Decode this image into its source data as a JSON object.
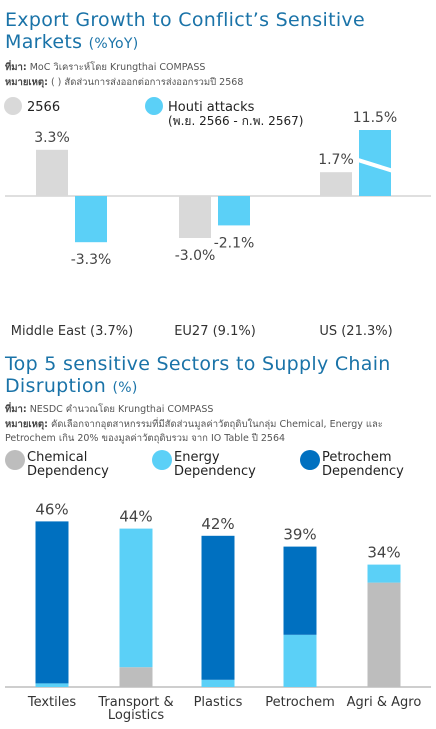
{
  "colors": {
    "title": "#1a73a8",
    "gray": "#d9d9d9",
    "gray_dark": "#bdbdbd",
    "cyan": "#5bd0f7",
    "blue": "#0070c0",
    "baseline": "#bfbfbf"
  },
  "section1": {
    "title": "Export Growth to Conflict’s Sensitive Markets",
    "title_unit": "(%YoY)",
    "source_label": "ที่มา:",
    "source_text": "MoC วิเคราะห์โดย Krungthai COMPASS",
    "note_label": "หมายเหตุ:",
    "note_text": "( ) สัดส่วนการส่งออกต่อการส่งออกรวมปี 2568"
  },
  "section2": {
    "title": "Top 5 sensitive Sectors to Supply Chain Disruption",
    "title_unit": "(%)",
    "source_label": "ที่มา:",
    "source_text": "NESDC คำนวณโดย Krungthai COMPASS",
    "note_label": "หมายเหตุ:",
    "note_line1": "คัดเลือกจากอุตสาหกรรมที่มีสัดส่วนมูลค่าวัตถุดิบในกลุ่ม Chemical, Energy และ",
    "note_line2": "Petrochem  เกิน 20% ของมูลค่าวัตถุดิบรวม จาก IO Table ปี 2564"
  },
  "chart_data": [
    {
      "type": "bar",
      "categories": [
        "Middle East (3.7%)",
        "EU27 (9.1%)",
        "US (21.3%)"
      ],
      "series": [
        {
          "name": "2566",
          "values": [
            3.3,
            -3.0,
            1.7
          ],
          "labels": [
            "3.3%",
            "-3.0%",
            "1.7%"
          ],
          "color": "#d9d9d9"
        },
        {
          "name": "Houti attacks (พ.ย. 2566 - ก.พ. 2567)",
          "values": [
            -3.3,
            -2.1,
            11.5
          ],
          "labels": [
            "-3.3%",
            "-2.1%",
            "11.5%"
          ],
          "color": "#5bd0f7"
        }
      ],
      "legend": [
        {
          "line1": "2566",
          "line2": ""
        },
        {
          "line1": "Houti attacks",
          "line2": "(พ.ย. 2566 - ก.พ. 2567)"
        }
      ],
      "axis_break": "US bar of Houti attacks series",
      "legend_position": "top-left"
    },
    {
      "type": "bar",
      "stacked": true,
      "categories": [
        "Textiles",
        "Transport & Logistics",
        "Plastics",
        "Petrochem",
        "Agri & Agro"
      ],
      "category_lines": [
        [
          "Textiles"
        ],
        [
          "Transport &",
          "Logistics"
        ],
        [
          "Plastics"
        ],
        [
          "Petrochem"
        ],
        [
          "Agri & Agro"
        ]
      ],
      "totals": [
        46,
        44,
        42,
        39,
        34
      ],
      "total_labels": [
        "46%",
        "44%",
        "42%",
        "39%",
        "34%"
      ],
      "series": [
        {
          "name": "Chemical Dependency",
          "values": [
            0,
            5.5,
            0,
            0,
            29
          ],
          "color": "#bdbdbd"
        },
        {
          "name": "Energy Dependency",
          "values": [
            1,
            38.5,
            2,
            14.5,
            5
          ],
          "color": "#5bd0f7"
        },
        {
          "name": "Petrochem Dependency",
          "values": [
            45,
            0,
            40,
            24.5,
            0
          ],
          "color": "#0070c0"
        }
      ],
      "legend": [
        {
          "line1": "Chemical",
          "line2": "Dependency"
        },
        {
          "line1": "Energy",
          "line2": "Dependency"
        },
        {
          "line1": "Petrochem",
          "line2": "Dependency"
        }
      ],
      "legend_position": "top"
    }
  ]
}
